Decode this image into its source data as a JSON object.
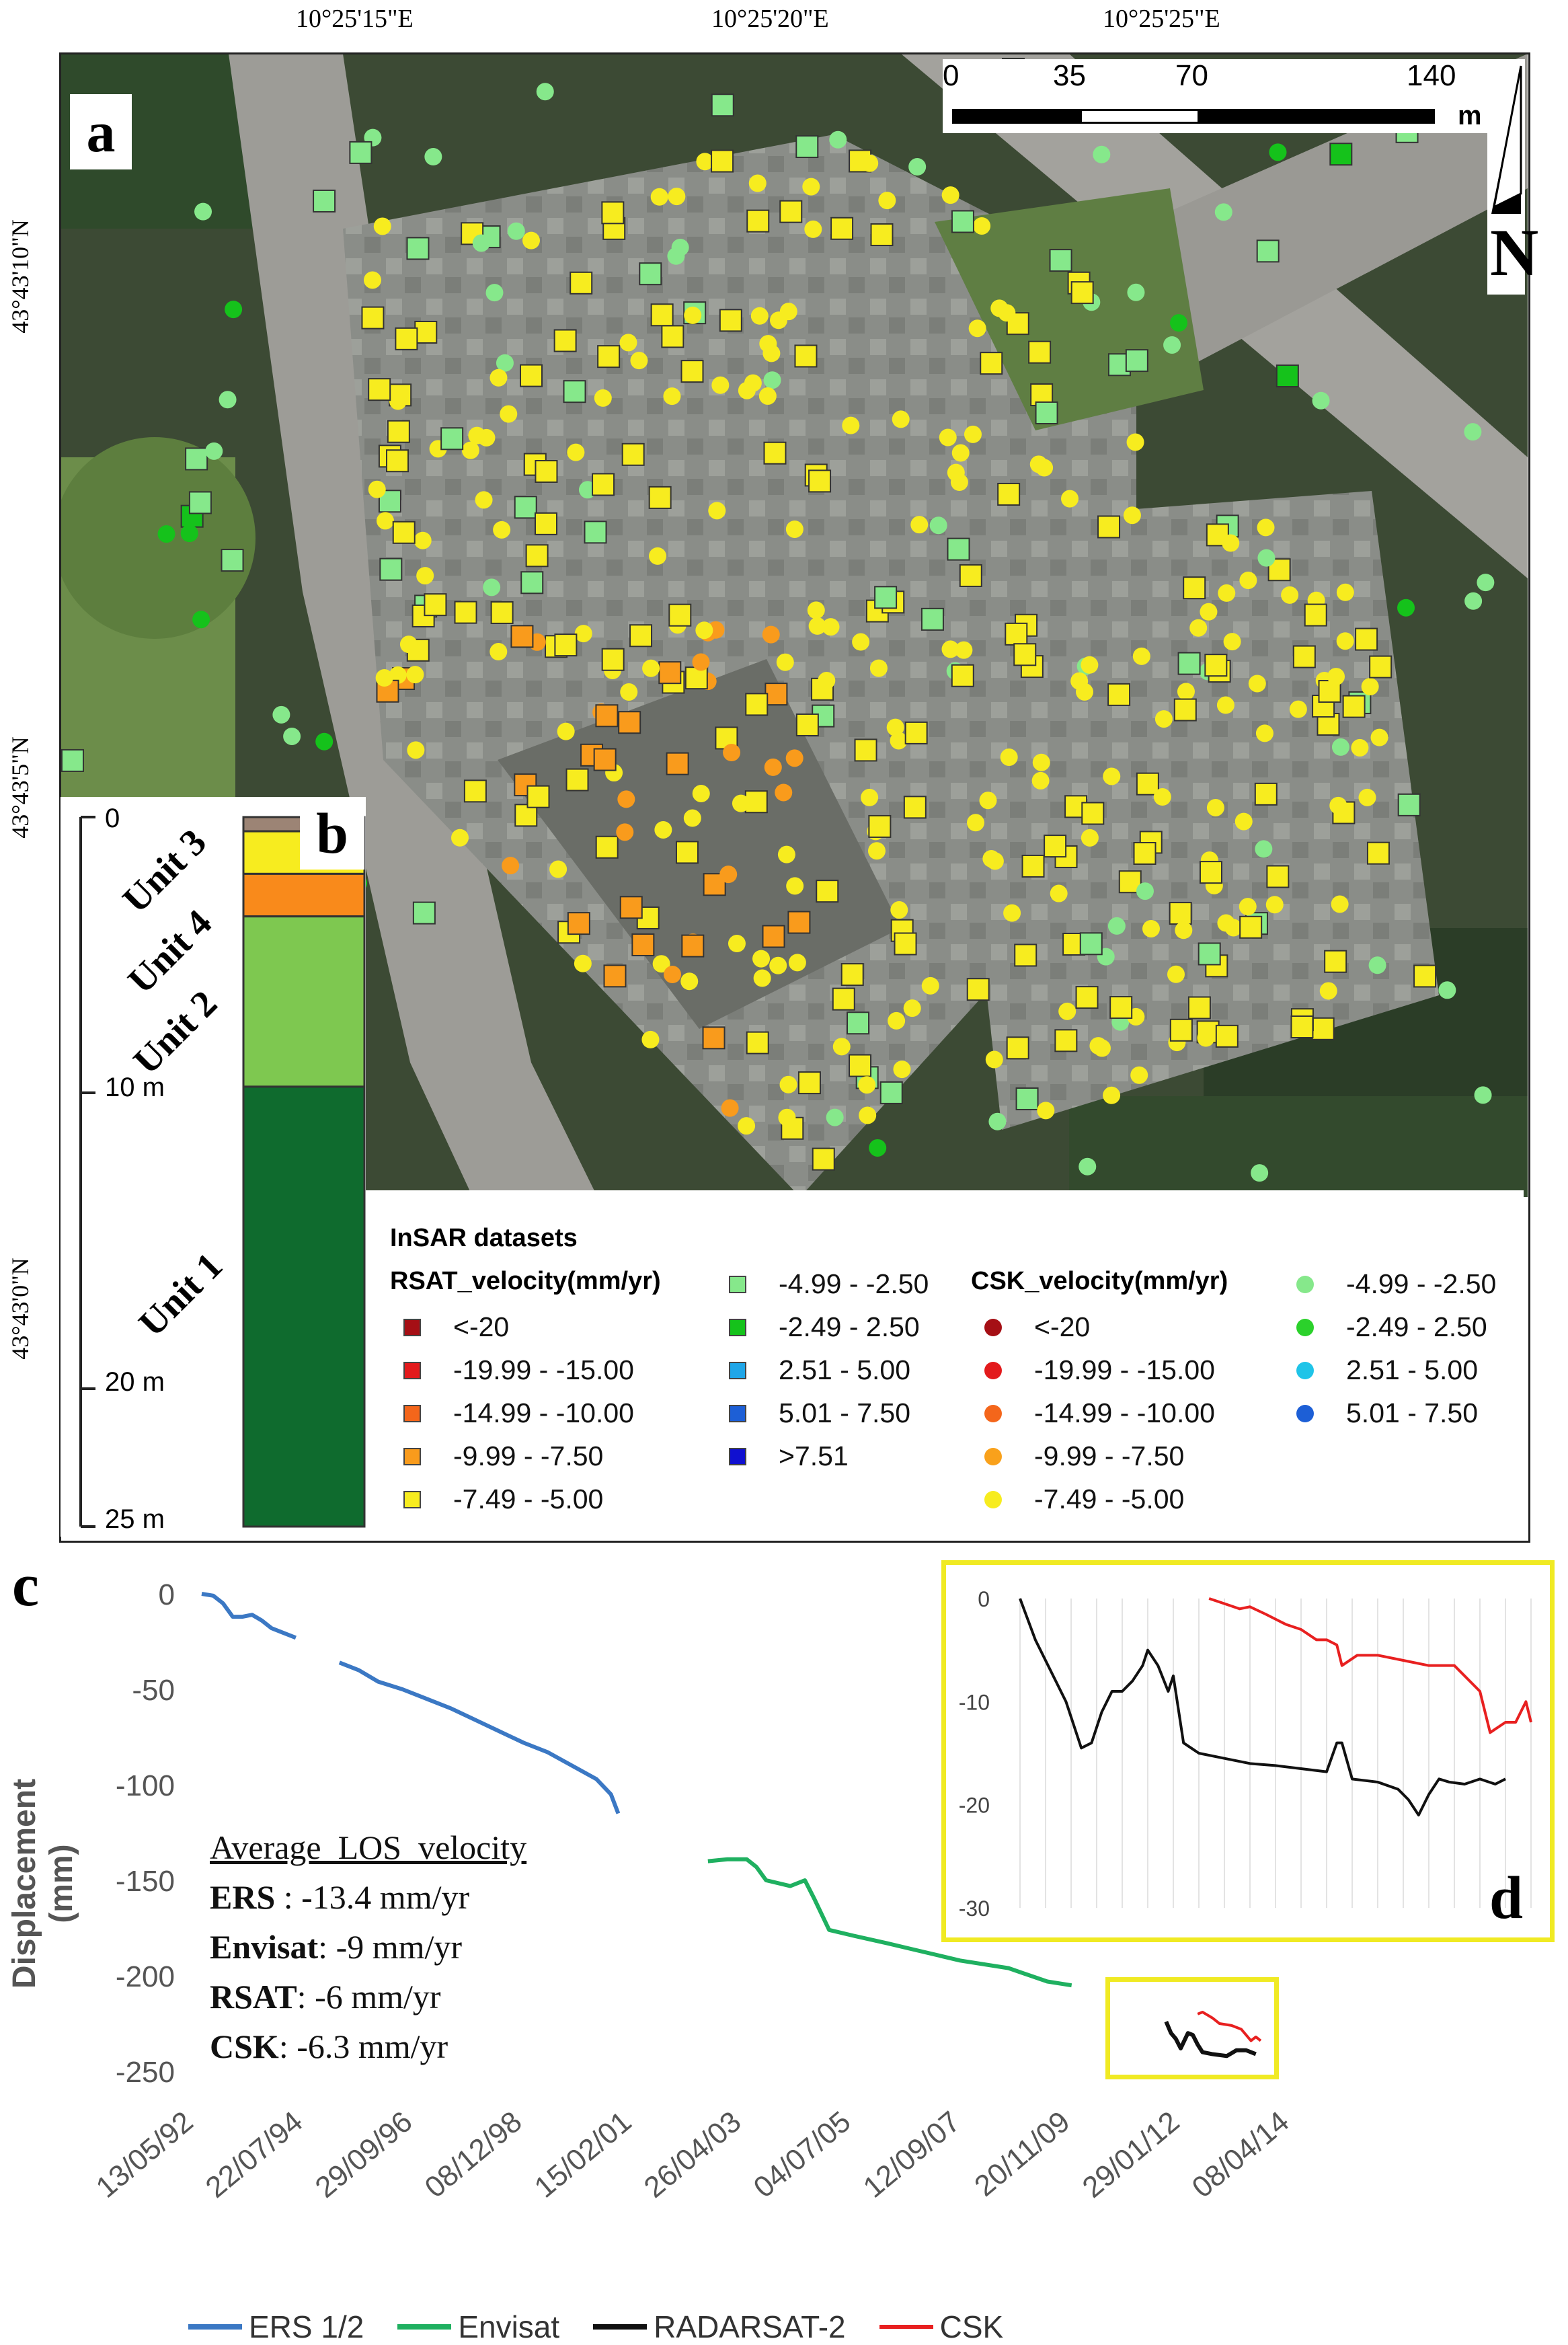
{
  "panel_a": {
    "label": "a",
    "top_ticks": [
      "10°25'15\"E",
      "10°25'20\"E",
      "10°25'25\"E"
    ],
    "left_ticks": [
      "43°43'10\"N",
      "43°43'5\"N",
      "43°43'0\"N"
    ],
    "scale_bar": {
      "labels": [
        "0",
        "35",
        "70",
        "140"
      ],
      "unit": "m"
    },
    "north": "N",
    "legend": {
      "title": "InSAR datasets",
      "rsat_title": "RSAT_velocity(mm/yr)",
      "csk_title": "CSK_velocity(mm/yr)",
      "rsat_classes": [
        {
          "label": "<-20",
          "color": "#a50f15"
        },
        {
          "label": "-19.99 - -15.00",
          "color": "#e31a1c"
        },
        {
          "label": "-14.99 - -10.00",
          "color": "#f4661b"
        },
        {
          "label": "-9.99 - -7.50",
          "color": "#f99b1c"
        },
        {
          "label": "-7.49 - -5.00",
          "color": "#f7ec1f"
        },
        {
          "label": "-4.99 - -2.50",
          "color": "#86e88b"
        },
        {
          "label": "-2.49 - 2.50",
          "color": "#15c21b"
        },
        {
          "label": "2.51 - 5.00",
          "color": "#1fa6e8"
        },
        {
          "label": "5.01 - 7.50",
          "color": "#1d5fd6"
        },
        {
          "label": ">7.51",
          "color": "#1010d0"
        }
      ],
      "csk_classes": [
        {
          "label": "<-20",
          "color": "#a50f15"
        },
        {
          "label": "-19.99 - -15.00",
          "color": "#e31a1c"
        },
        {
          "label": "-14.99 - -10.00",
          "color": "#f4661b"
        },
        {
          "label": "-9.99 - -7.50",
          "color": "#f9a11b"
        },
        {
          "label": "-7.49 - -5.00",
          "color": "#f7ec1f"
        },
        {
          "label": "-4.99 - -2.50",
          "color": "#86e88b"
        },
        {
          "label": "-2.49 - 2.50",
          "color": "#2bd12b"
        },
        {
          "label": "2.51 - 5.00",
          "color": "#1fc4e8"
        },
        {
          "label": "5.01 - 7.50",
          "color": "#1d5fd6"
        }
      ]
    }
  },
  "panel_b": {
    "label": "b",
    "depth_ticks": [
      "0",
      "10 m",
      "20 m",
      "25 m"
    ],
    "units": [
      {
        "name": "Unit 3",
        "top": 0.5,
        "bottom": 2.0,
        "color": "#f7ec1f"
      },
      {
        "name": "Unit 4",
        "top": 2.0,
        "bottom": 3.5,
        "color": "#f98a1b"
      },
      {
        "name": "Unit 2",
        "top": 3.5,
        "bottom": 9.5,
        "color": "#7ec850"
      },
      {
        "name": "Unit 1",
        "top": 9.5,
        "bottom": 25.0,
        "color": "#0f6b2e"
      }
    ],
    "topsoil": {
      "top": 0.0,
      "bottom": 0.5,
      "color": "#9c8475"
    }
  },
  "panel_c": {
    "label": "c",
    "ylabel": "Displacement (mm)",
    "annotation": {
      "title": "Average  LOS  velocity",
      "lines": [
        {
          "name": "ERS",
          "value": ": -13.4 mm/yr"
        },
        {
          "name": "Envisat",
          "value": ": -9 mm/yr"
        },
        {
          "name": "RSAT",
          "value": ": -6 mm/yr"
        },
        {
          "name": "CSK",
          "value": ": -6.3 mm/yr"
        }
      ]
    },
    "legend": [
      "ERS 1/2",
      "Envisat",
      "RADARSAT-2",
      "CSK"
    ]
  },
  "panel_d": {
    "label": "d"
  },
  "chart_data": [
    {
      "type": "line",
      "title": "",
      "xlabel": "",
      "ylabel": "Displacement (mm)",
      "ylim": [
        -250,
        0
      ],
      "yticks": [
        0,
        -50,
        -100,
        -150,
        -200,
        -250
      ],
      "xticks": [
        "13/05/92",
        "22/07/94",
        "29/09/96",
        "08/12/98",
        "15/02/01",
        "26/04/03",
        "04/07/05",
        "12/09/07",
        "20/11/09",
        "29/01/12",
        "08/04/14"
      ],
      "xlim_years": [
        1992.36,
        2014.27
      ],
      "series": [
        {
          "name": "ERS 1/2",
          "color": "#3b78c4",
          "x": [
            1992.36,
            1992.6,
            1992.8,
            1993.0,
            1993.2,
            1993.4,
            1993.6,
            1993.8,
            1994.0,
            1994.3
          ],
          "y": [
            0,
            -1,
            -5,
            -12,
            -12,
            -11,
            -14,
            -18,
            -20,
            -23
          ]
        },
        {
          "name": "ERS 1/2",
          "color": "#3b78c4",
          "x": [
            1995.2,
            1995.6,
            1996.0,
            1996.5,
            1997.0,
            1997.5,
            1998.0,
            1998.5,
            1999.0,
            1999.5,
            2000.0,
            2000.5,
            2000.8,
            2000.95
          ],
          "y": [
            -36,
            -40,
            -46,
            -50,
            -55,
            -60,
            -66,
            -72,
            -78,
            -83,
            -90,
            -97,
            -105,
            -115
          ]
        },
        {
          "name": "Envisat",
          "color": "#1fb060",
          "x": [
            2002.8,
            2003.2,
            2003.6,
            2003.8,
            2004.0,
            2004.5,
            2004.8,
            2005.0,
            2005.3,
            2005.8,
            2006.5,
            2007.0,
            2008.0,
            2009.0,
            2009.8,
            2010.3
          ],
          "y": [
            -140,
            -139,
            -139,
            -143,
            -150,
            -153,
            -150,
            -160,
            -176,
            -179,
            -183,
            -186,
            -192,
            -196,
            -203,
            -205
          ]
        },
        {
          "name": "RADARSAT-2",
          "color": "#111111",
          "x": [
            2012.25,
            2012.35,
            2012.45,
            2012.55,
            2012.7,
            2012.8,
            2012.9,
            2013.0,
            2013.2,
            2013.5,
            2013.7,
            2013.9,
            2014.1
          ],
          "y": [
            -224,
            -230,
            -233,
            -238,
            -230,
            -231,
            -236,
            -240,
            -241,
            -242,
            -239,
            -239,
            -241
          ]
        },
        {
          "name": "CSK",
          "color": "#e82020",
          "x": [
            2012.9,
            2013.0,
            2013.2,
            2013.35,
            2013.6,
            2013.8,
            2014.0,
            2014.1,
            2014.2
          ],
          "y": [
            -220,
            -219,
            -222,
            -225,
            -226,
            -228,
            -234,
            -232,
            -234
          ]
        }
      ]
    },
    {
      "type": "line",
      "title": "",
      "ylim": [
        -30,
        0
      ],
      "yticks": [
        0,
        -10,
        -20,
        -30
      ],
      "xlim": [
        0,
        100
      ],
      "series": [
        {
          "name": "RADARSAT-2",
          "color": "#111111",
          "x": [
            0,
            3,
            6,
            9,
            12,
            14,
            16,
            18,
            20,
            22,
            24,
            25,
            27,
            29,
            30,
            32,
            35,
            40,
            45,
            50,
            55,
            60,
            62,
            63,
            65,
            70,
            74,
            76,
            78,
            80,
            82,
            84,
            87,
            90,
            93,
            95
          ],
          "y": [
            0,
            -4,
            -7,
            -10,
            -14.5,
            -14,
            -11,
            -9,
            -9,
            -8,
            -6.5,
            -5,
            -6.5,
            -9,
            -7.5,
            -14,
            -15,
            -15.5,
            -16,
            -16.2,
            -16.5,
            -16.8,
            -14,
            -14,
            -17.5,
            -17.8,
            -18.5,
            -19.5,
            -21,
            -19,
            -17.5,
            -17.8,
            -18,
            -17.5,
            -18,
            -17.5
          ]
        },
        {
          "name": "CSK",
          "color": "#e82020",
          "x": [
            37,
            40,
            43,
            45,
            48,
            52,
            55,
            58,
            60,
            62,
            63,
            66,
            70,
            75,
            80,
            85,
            90,
            92,
            95,
            97,
            99,
            100
          ],
          "y": [
            0,
            -0.5,
            -1,
            -0.8,
            -1.5,
            -2.5,
            -3,
            -4,
            -4,
            -4.5,
            -6.5,
            -5.5,
            -5.5,
            -6,
            -6.5,
            -6.5,
            -9,
            -13,
            -12,
            -12,
            -10,
            -12
          ]
        }
      ]
    }
  ]
}
